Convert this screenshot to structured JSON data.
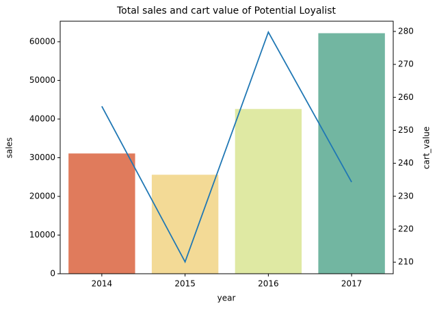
{
  "chart_data": {
    "type": "bar",
    "title": "Total sales and cart value of Potential Loyalist",
    "x_label": "year",
    "y_label": "sales",
    "y2_label": "cart_value",
    "categories": [
      "2014",
      "2015",
      "2016",
      "2017"
    ],
    "series": [
      {
        "name": "sales",
        "type": "bar",
        "colors": [
          "#e07b5c",
          "#f3da96",
          "#dfe9a3",
          "#72b6a1"
        ],
        "values": [
          31100,
          25600,
          42600,
          62200
        ]
      },
      {
        "name": "cart_value",
        "type": "line",
        "axis": "y2",
        "color": "#1f77b4",
        "values": [
          257.3,
          210.1,
          279.8,
          234.3
        ]
      }
    ],
    "ylim": [
      0,
      65300
    ],
    "yticks": [
      0,
      10000,
      20000,
      30000,
      40000,
      50000,
      60000
    ],
    "y2lim": [
      206.5,
      283.1
    ],
    "y2ticks": [
      210,
      220,
      230,
      240,
      250,
      260,
      270,
      280
    ]
  }
}
